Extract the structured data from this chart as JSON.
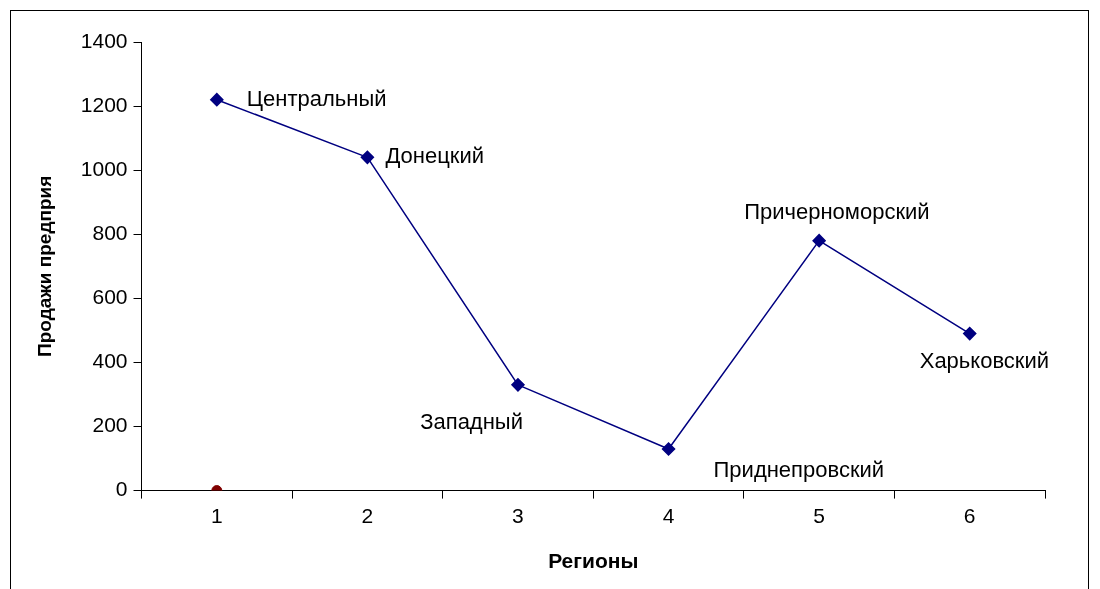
{
  "chart_data": {
    "type": "line",
    "xlabel": "Регионы",
    "ylabel": "Продажи предприя",
    "categories": [
      "1",
      "2",
      "3",
      "4",
      "5",
      "6"
    ],
    "series": [
      {
        "color": "#000080",
        "marker": "diamond",
        "values": [
          1220,
          1040,
          330,
          130,
          780,
          490
        ]
      },
      {
        "type": "scatter",
        "color": "#800000",
        "marker": "circle",
        "values": [
          0,
          null,
          null,
          null,
          null,
          null
        ]
      }
    ],
    "ylim": [
      0,
      1400
    ],
    "yticks": [
      0,
      200,
      400,
      600,
      800,
      1000,
      1200,
      1400
    ],
    "grid": false,
    "legend": false,
    "annotations": [
      {
        "text": "Центральный",
        "x": "1",
        "y": 1220
      },
      {
        "text": "Донецкий",
        "x": "2",
        "y": 1040
      },
      {
        "text": "Западный",
        "x": "3",
        "y": 330
      },
      {
        "text": "Приднепровский",
        "x": "4",
        "y": 130
      },
      {
        "text": "Причерноморский",
        "x": "5",
        "y": 780
      },
      {
        "text": "Харьковский",
        "x": "6",
        "y": 490
      }
    ]
  }
}
